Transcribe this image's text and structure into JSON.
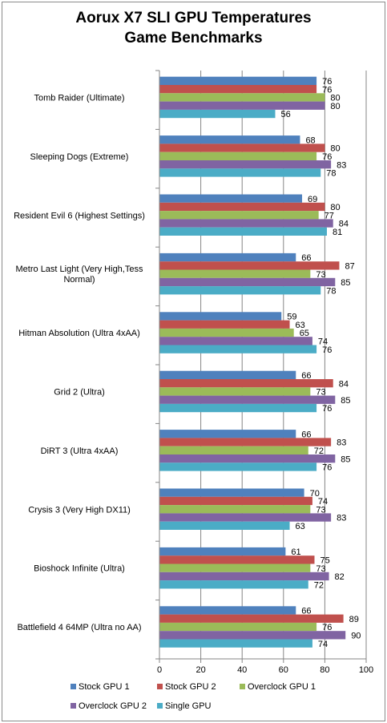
{
  "chart_data": {
    "type": "bar",
    "orientation": "horizontal",
    "title": "Aorux X7 SLI GPU Temperatures",
    "subtitle": "Game Benchmarks",
    "categories": [
      "Tomb Raider (Ultimate)",
      "Sleeping Dogs (Extreme)",
      "Resident Evil 6 (Highest Settings)",
      "Metro Last Light (Very High,Tess Normal)",
      "Hitman Absolution (Ultra 4xAA)",
      "Grid 2 (Ultra)",
      "DiRT 3 (Ultra 4xAA)",
      "Crysis 3 (Very High DX11)",
      "Bioshock Infinite (Ultra)",
      "Battlefield 4 64MP (Ultra no AA)"
    ],
    "series": [
      {
        "name": "Stock GPU 1",
        "color": "#4f81bd",
        "values": [
          76,
          68,
          69,
          66,
          59,
          66,
          66,
          70,
          61,
          66
        ]
      },
      {
        "name": "Stock GPU 2",
        "color": "#c0504d",
        "values": [
          76,
          80,
          80,
          87,
          63,
          84,
          83,
          74,
          75,
          89
        ]
      },
      {
        "name": "Overclock GPU 1",
        "color": "#9bbb59",
        "values": [
          80,
          76,
          77,
          73,
          65,
          73,
          72,
          73,
          73,
          76
        ]
      },
      {
        "name": "Overclock GPU 2",
        "color": "#8064a2",
        "values": [
          80,
          83,
          84,
          85,
          74,
          85,
          85,
          83,
          82,
          90
        ]
      },
      {
        "name": "Single GPU",
        "color": "#4bacc6",
        "values": [
          56,
          78,
          81,
          78,
          76,
          76,
          76,
          63,
          72,
          74
        ]
      }
    ],
    "xlim": [
      0,
      100
    ],
    "xticks": [
      0,
      20,
      40,
      60,
      80,
      100
    ],
    "grid": true,
    "legend_position": "bottom"
  }
}
